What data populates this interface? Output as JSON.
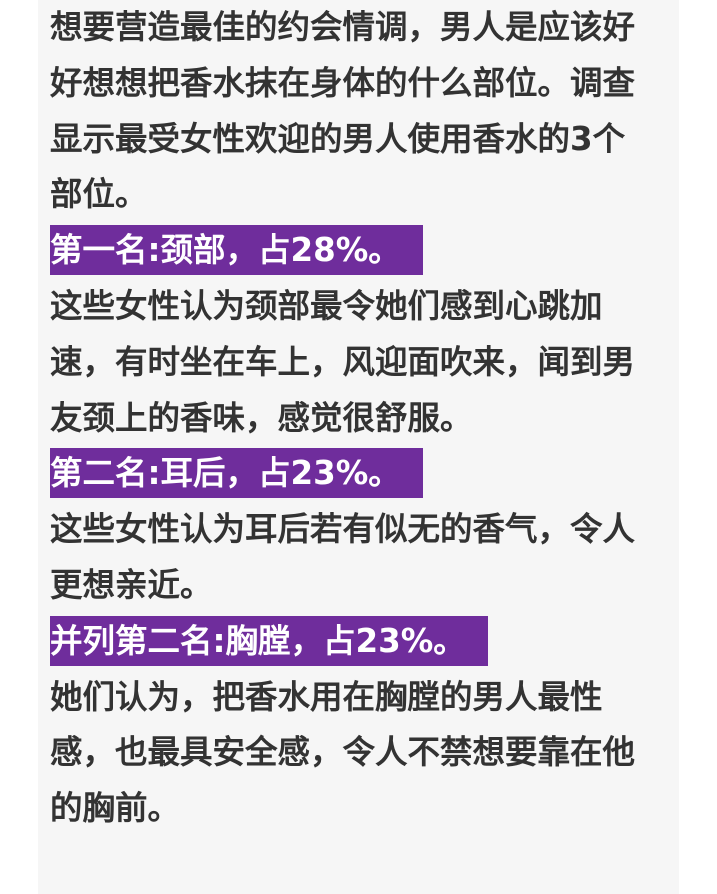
{
  "intro": "想要营造最佳的约会情调，男人是应该好好想想把香水抹在身体的什么部位。调查显示最受女性欢迎的男人使用香水的3个部位。",
  "sections": [
    {
      "heading": "第一名:颈部，占28%。",
      "body": "这些女性认为颈部最令她们感到心跳加速，有时坐在车上，风迎面吹来，闻到男友颈上的香味，感觉很舒服。"
    },
    {
      "heading": "第二名:耳后，占23%。",
      "body": "这些女性认为耳后若有似无的香气，令人更想亲近。"
    },
    {
      "heading": "并列第二名:胸膛，占23%。",
      "body": "她们认为，把香水用在胸膛的男人最性感，也最具安全感，令人不禁想要靠在他的胸前。"
    }
  ],
  "colors": {
    "heading_bg": "#6f2d9c",
    "heading_text": "#ffffff",
    "body_text": "#333333",
    "page_bg": "#f6f6f6"
  }
}
